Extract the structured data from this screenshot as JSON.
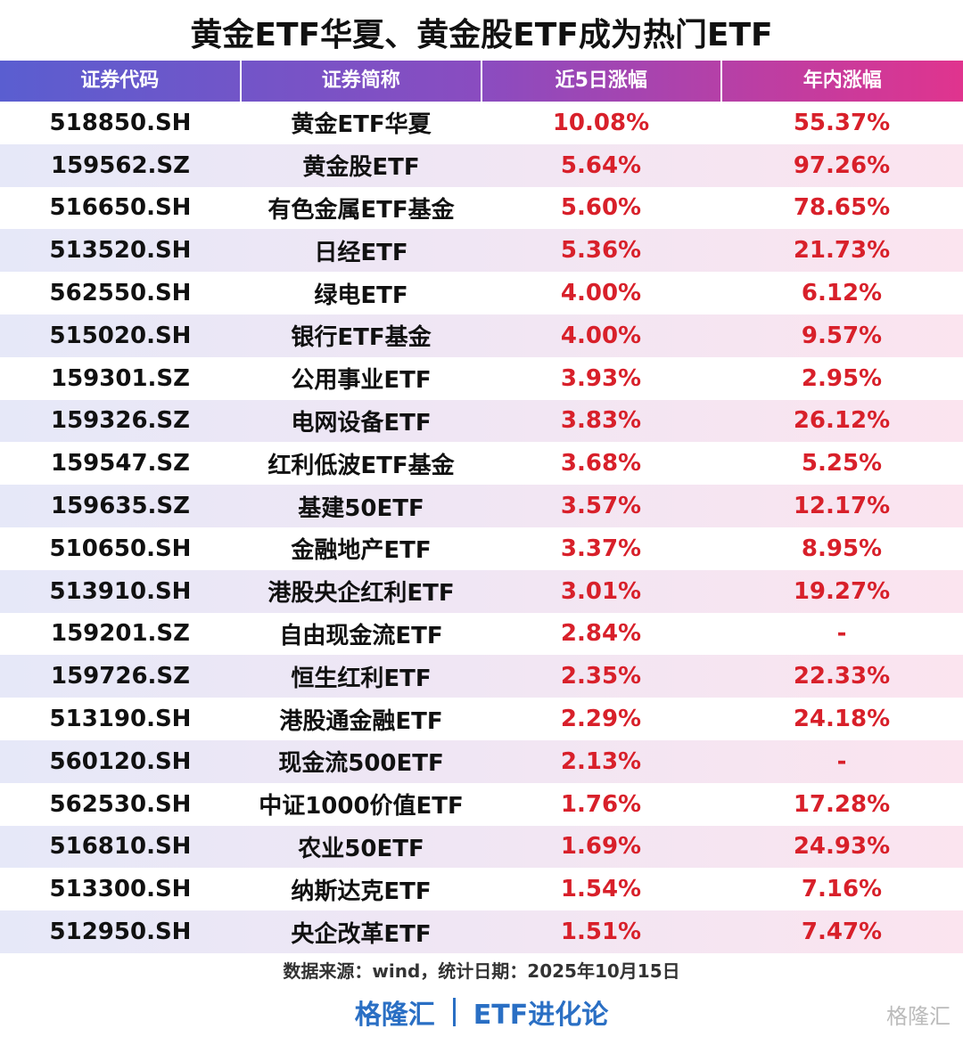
{
  "title": "黄金ETF华夏、黄金股ETF成为热门ETF",
  "table": {
    "columns": [
      "证券代码",
      "证券简称",
      "近5日涨幅",
      "年内涨幅"
    ],
    "rows": [
      [
        "518850.SH",
        "黄金ETF华夏",
        "10.08%",
        "55.37%"
      ],
      [
        "159562.SZ",
        "黄金股ETF",
        "5.64%",
        "97.26%"
      ],
      [
        "516650.SH",
        "有色金属ETF基金",
        "5.60%",
        "78.65%"
      ],
      [
        "513520.SH",
        "日经ETF",
        "5.36%",
        "21.73%"
      ],
      [
        "562550.SH",
        "绿电ETF",
        "4.00%",
        "6.12%"
      ],
      [
        "515020.SH",
        "银行ETF基金",
        "4.00%",
        "9.57%"
      ],
      [
        "159301.SZ",
        "公用事业ETF",
        "3.93%",
        "2.95%"
      ],
      [
        "159326.SZ",
        "电网设备ETF",
        "3.83%",
        "26.12%"
      ],
      [
        "159547.SZ",
        "红利低波ETF基金",
        "3.68%",
        "5.25%"
      ],
      [
        "159635.SZ",
        "基建50ETF",
        "3.57%",
        "12.17%"
      ],
      [
        "510650.SH",
        "金融地产ETF",
        "3.37%",
        "8.95%"
      ],
      [
        "513910.SH",
        "港股央企红利ETF",
        "3.01%",
        "19.27%"
      ],
      [
        "159201.SZ",
        "自由现金流ETF",
        "2.84%",
        "-"
      ],
      [
        "159726.SZ",
        "恒生红利ETF",
        "2.35%",
        "22.33%"
      ],
      [
        "513190.SH",
        "港股通金融ETF",
        "2.29%",
        "24.18%"
      ],
      [
        "560120.SH",
        "现金流500ETF",
        "2.13%",
        "-"
      ],
      [
        "562530.SH",
        "中证1000价值ETF",
        "1.76%",
        "17.28%"
      ],
      [
        "516810.SH",
        "农业50ETF",
        "1.69%",
        "24.93%"
      ],
      [
        "513300.SH",
        "纳斯达克ETF",
        "1.54%",
        "7.16%"
      ],
      [
        "512950.SH",
        "央企改革ETF",
        "1.51%",
        "7.47%"
      ]
    ]
  },
  "source": "数据来源：wind，统计日期：2025年10月15日",
  "brand": {
    "left": "格隆汇",
    "right": "ETF进化论"
  },
  "watermark": "格隆汇"
}
